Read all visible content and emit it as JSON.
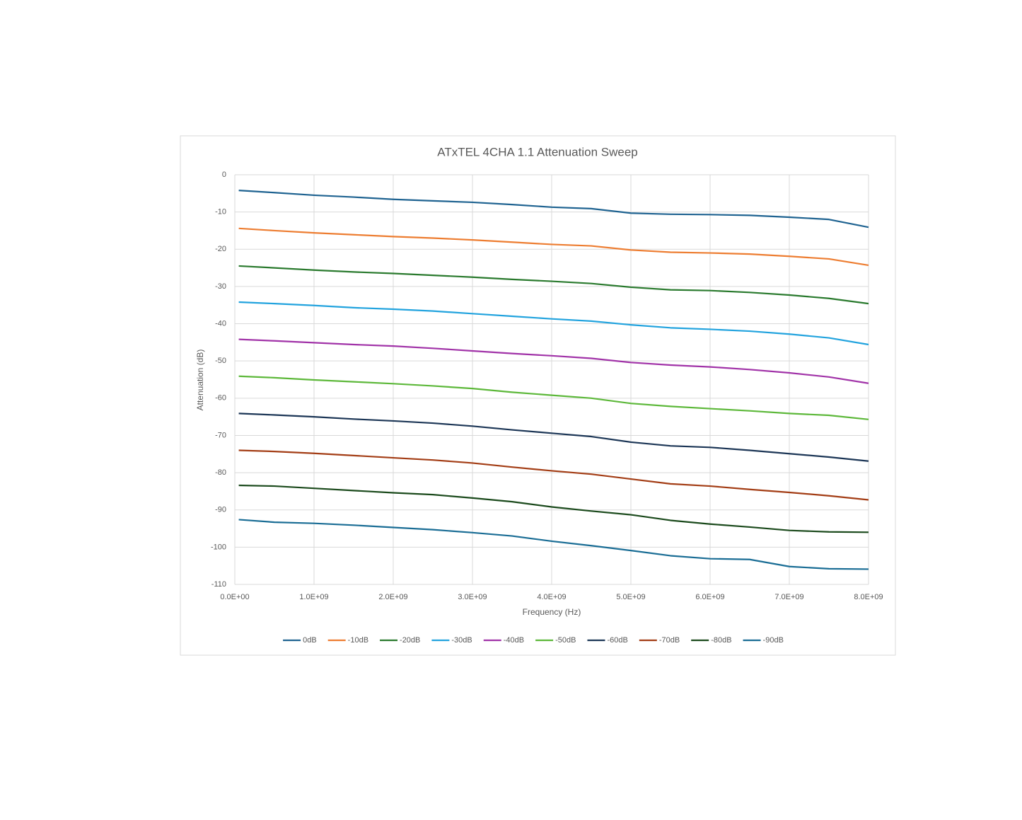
{
  "chart_data": {
    "type": "line",
    "title": "ATxTEL 4CHA 1.1 Attenuation Sweep",
    "x_label": "Frequency (Hz)",
    "y_label": "Attenuation (dB)",
    "x": [
      50000000,
      500000000,
      1000000000,
      1500000000,
      2000000000,
      2500000000,
      3000000000,
      3500000000,
      4000000000,
      4500000000,
      5000000000,
      5500000000,
      6000000000,
      6500000000,
      7000000000,
      7500000000,
      8000000000
    ],
    "xlim": [
      0,
      8000000000
    ],
    "xticks": [
      {
        "value": 0,
        "label": "0.0E+00"
      },
      {
        "value": 1000000000,
        "label": "1.0E+09"
      },
      {
        "value": 2000000000,
        "label": "2.0E+09"
      },
      {
        "value": 3000000000,
        "label": "3.0E+09"
      },
      {
        "value": 4000000000,
        "label": "4.0E+09"
      },
      {
        "value": 5000000000,
        "label": "5.0E+09"
      },
      {
        "value": 6000000000,
        "label": "6.0E+09"
      },
      {
        "value": 7000000000,
        "label": "7.0E+09"
      },
      {
        "value": 8000000000,
        "label": "8.0E+09"
      }
    ],
    "ylim": [
      -110,
      0
    ],
    "yticks": [
      0,
      -10,
      -20,
      -30,
      -40,
      -50,
      -60,
      -70,
      -80,
      -90,
      -100,
      -110
    ],
    "grid": true,
    "legend": "bottom",
    "series": [
      {
        "name": "0dB",
        "color": "#1f6391",
        "values": [
          -4.2,
          -4.8,
          -5.5,
          -6.0,
          -6.6,
          -7.0,
          -7.4,
          -8.0,
          -8.7,
          -9.1,
          -10.3,
          -10.6,
          -10.7,
          -10.9,
          -11.4,
          -12.0,
          -14.1
        ]
      },
      {
        "name": "-10dB",
        "color": "#ed7d31",
        "values": [
          -14.4,
          -15.0,
          -15.6,
          -16.1,
          -16.6,
          -17.0,
          -17.5,
          -18.1,
          -18.7,
          -19.1,
          -20.2,
          -20.8,
          -21.0,
          -21.3,
          -21.9,
          -22.6,
          -24.3
        ]
      },
      {
        "name": "-20dB",
        "color": "#2a7a2e",
        "values": [
          -24.5,
          -25.0,
          -25.6,
          -26.1,
          -26.5,
          -27.0,
          -27.5,
          -28.1,
          -28.6,
          -29.2,
          -30.2,
          -30.9,
          -31.1,
          -31.6,
          -32.3,
          -33.2,
          -34.6
        ]
      },
      {
        "name": "-30dB",
        "color": "#22a3de",
        "values": [
          -34.2,
          -34.6,
          -35.1,
          -35.7,
          -36.1,
          -36.6,
          -37.3,
          -38.0,
          -38.7,
          -39.3,
          -40.3,
          -41.1,
          -41.5,
          -42.0,
          -42.8,
          -43.8,
          -45.6
        ]
      },
      {
        "name": "-40dB",
        "color": "#a133a8",
        "values": [
          -44.2,
          -44.6,
          -45.1,
          -45.6,
          -46.0,
          -46.6,
          -47.3,
          -48.0,
          -48.6,
          -49.3,
          -50.4,
          -51.1,
          -51.6,
          -52.3,
          -53.2,
          -54.3,
          -56.0
        ]
      },
      {
        "name": "-50dB",
        "color": "#5db83a",
        "values": [
          -54.1,
          -54.5,
          -55.1,
          -55.6,
          -56.1,
          -56.7,
          -57.4,
          -58.4,
          -59.2,
          -60.0,
          -61.4,
          -62.2,
          -62.8,
          -63.4,
          -64.1,
          -64.6,
          -65.7
        ]
      },
      {
        "name": "-60dB",
        "color": "#1c3656",
        "values": [
          -64.1,
          -64.5,
          -65.0,
          -65.6,
          -66.1,
          -66.7,
          -67.5,
          -68.5,
          -69.4,
          -70.3,
          -71.8,
          -72.8,
          -73.2,
          -74.0,
          -74.9,
          -75.8,
          -76.9
        ]
      },
      {
        "name": "-70dB",
        "color": "#a33d15",
        "values": [
          -74.0,
          -74.3,
          -74.8,
          -75.4,
          -76.0,
          -76.6,
          -77.4,
          -78.5,
          -79.5,
          -80.4,
          -81.7,
          -83.0,
          -83.6,
          -84.5,
          -85.3,
          -86.2,
          -87.3
        ]
      },
      {
        "name": "-80dB",
        "color": "#1b4a1c",
        "values": [
          -83.4,
          -83.6,
          -84.2,
          -84.8,
          -85.4,
          -85.9,
          -86.8,
          -87.8,
          -89.2,
          -90.3,
          -91.3,
          -92.8,
          -93.8,
          -94.6,
          -95.5,
          -95.9,
          -96.0
        ]
      },
      {
        "name": "-90dB",
        "color": "#1a6d95",
        "values": [
          -92.6,
          -93.3,
          -93.6,
          -94.1,
          -94.7,
          -95.3,
          -96.1,
          -97.0,
          -98.4,
          -99.6,
          -100.9,
          -102.3,
          -103.1,
          -103.3,
          -105.2,
          -105.8,
          -105.9
        ]
      }
    ]
  }
}
